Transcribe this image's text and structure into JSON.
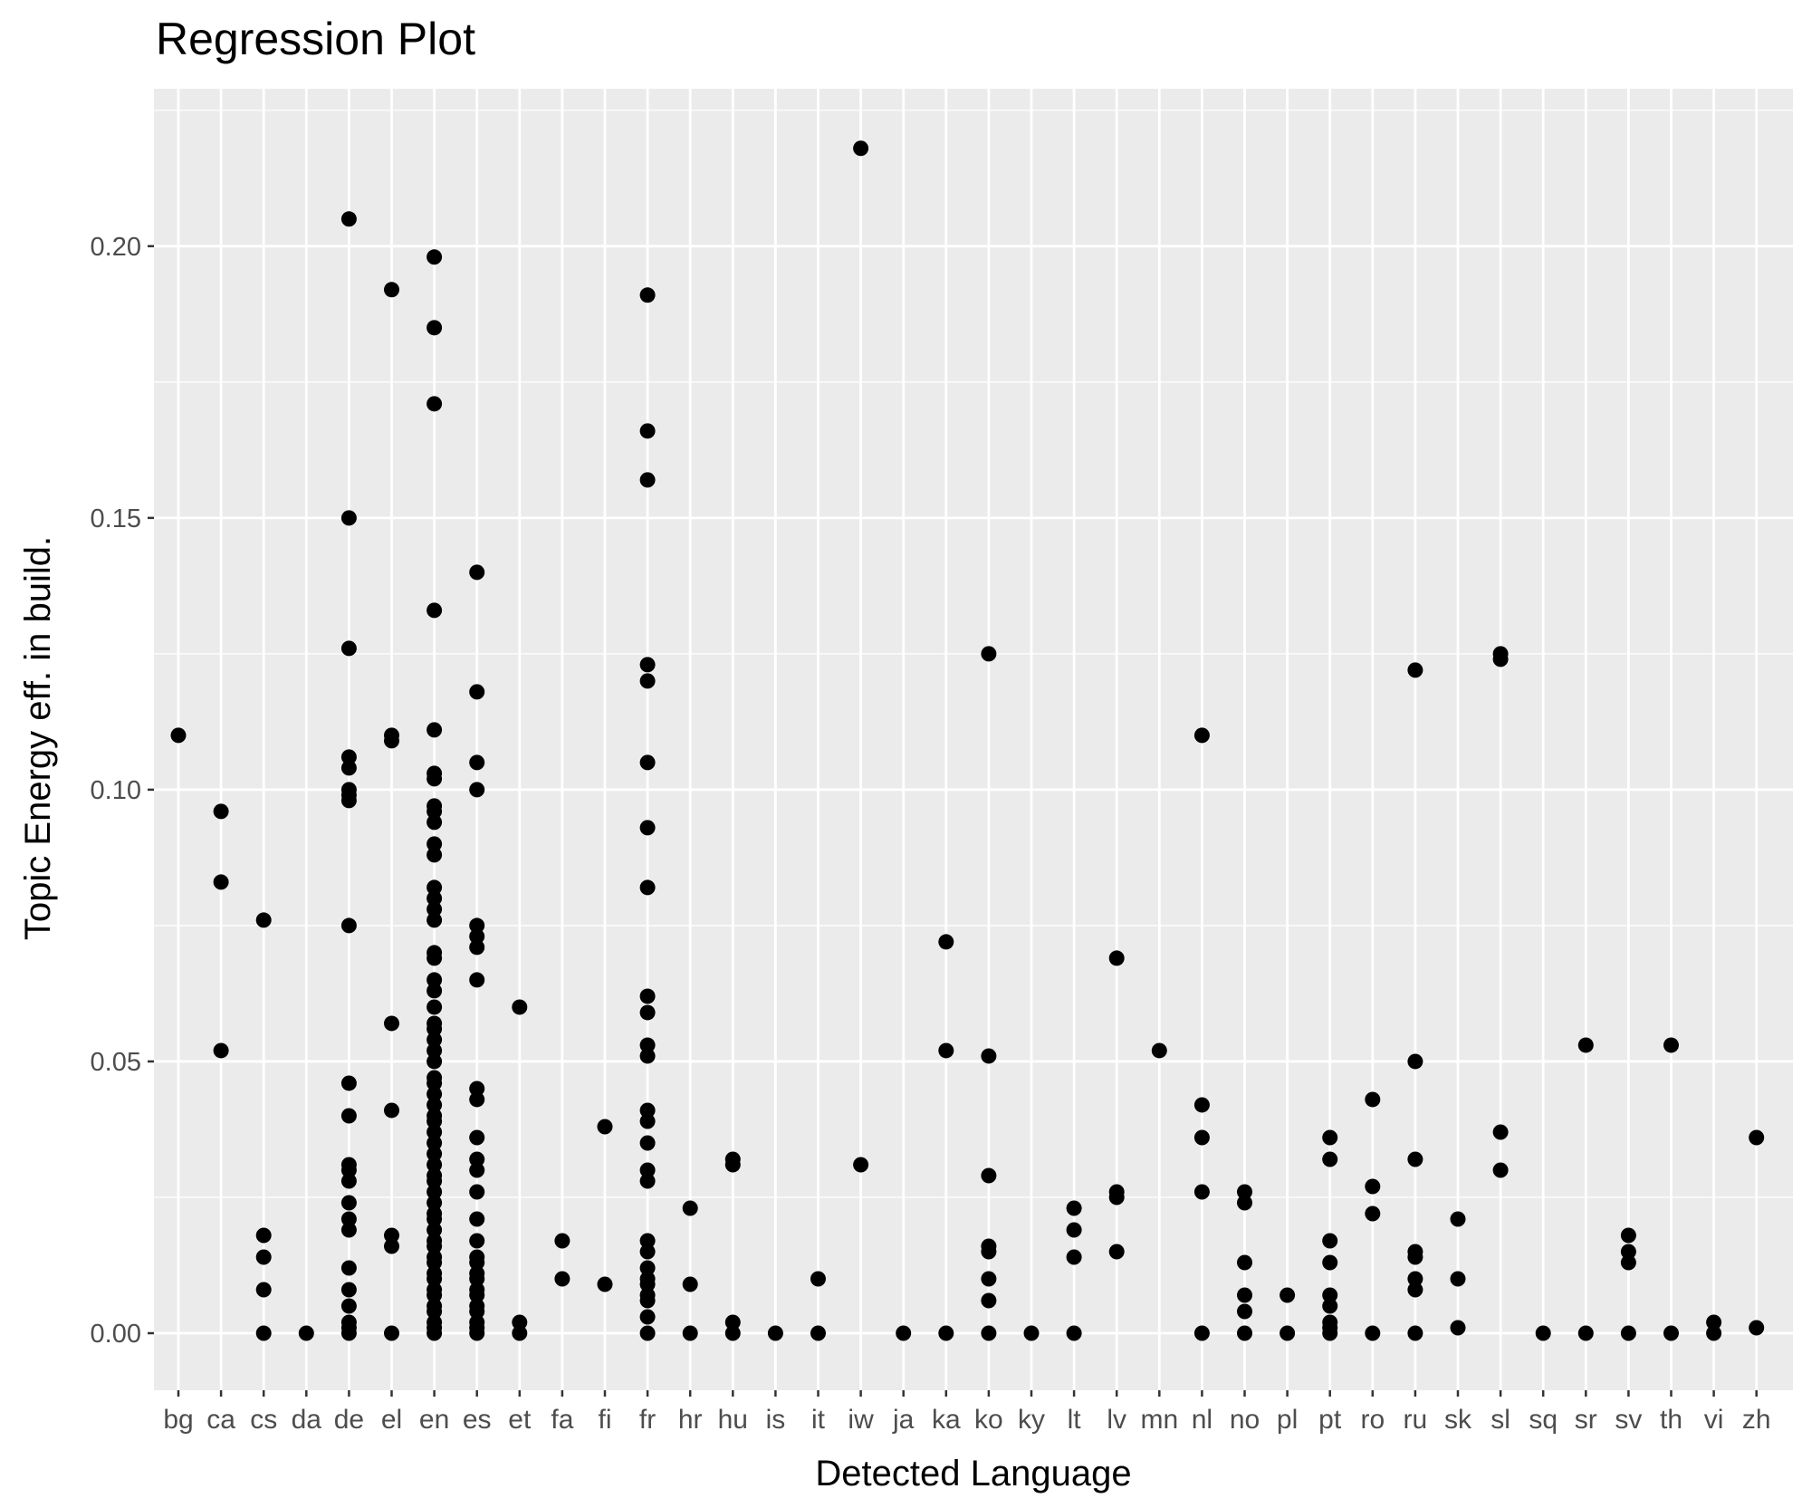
{
  "chart_data": {
    "type": "scatter",
    "title": "Regression Plot",
    "xlabel": "Detected Language",
    "ylabel": "Topic Energy eff. in build.",
    "categories": [
      "bg",
      "ca",
      "cs",
      "da",
      "de",
      "el",
      "en",
      "es",
      "et",
      "fa",
      "fi",
      "fr",
      "hr",
      "hu",
      "is",
      "it",
      "iw",
      "ja",
      "ka",
      "ko",
      "ky",
      "lt",
      "lv",
      "mn",
      "nl",
      "no",
      "pl",
      "pt",
      "ro",
      "ru",
      "sk",
      "sl",
      "sq",
      "sr",
      "sv",
      "th",
      "vi",
      "zh"
    ],
    "ylim": [
      -0.011,
      0.229
    ],
    "yticks": [
      "0.00",
      "0.05",
      "0.10",
      "0.15",
      "0.20"
    ],
    "grid": true,
    "point_color": "#000000",
    "panel_color": "#ebebeb",
    "series": [
      {
        "points": {
          "bg": [
            0.11
          ],
          "ca": [
            0.096,
            0.083,
            0.052
          ],
          "cs": [
            0.076,
            0.018,
            0.014,
            0.008,
            0.0
          ],
          "da": [
            0.0
          ],
          "de": [
            0.205,
            0.15,
            0.126,
            0.106,
            0.104,
            0.1,
            0.099,
            0.098,
            0.075,
            0.046,
            0.04,
            0.031,
            0.03,
            0.028,
            0.024,
            0.021,
            0.019,
            0.012,
            0.008,
            0.005,
            0.002,
            0.001,
            0.0
          ],
          "el": [
            0.192,
            0.11,
            0.109,
            0.057,
            0.041,
            0.018,
            0.016,
            0.0
          ],
          "en": [
            0.198,
            0.185,
            0.171,
            0.133,
            0.111,
            0.103,
            0.102,
            0.097,
            0.096,
            0.094,
            0.09,
            0.088,
            0.082,
            0.08,
            0.078,
            0.076,
            0.07,
            0.069,
            0.065,
            0.063,
            0.06,
            0.057,
            0.056,
            0.054,
            0.052,
            0.05,
            0.047,
            0.046,
            0.044,
            0.042,
            0.04,
            0.039,
            0.037,
            0.035,
            0.033,
            0.031,
            0.029,
            0.028,
            0.026,
            0.024,
            0.022,
            0.021,
            0.019,
            0.017,
            0.016,
            0.014,
            0.013,
            0.011,
            0.01,
            0.008,
            0.007,
            0.005,
            0.004,
            0.002,
            0.001,
            0.0
          ],
          "es": [
            0.14,
            0.118,
            0.105,
            0.1,
            0.075,
            0.073,
            0.071,
            0.065,
            0.045,
            0.043,
            0.036,
            0.032,
            0.03,
            0.026,
            0.021,
            0.017,
            0.014,
            0.013,
            0.011,
            0.01,
            0.008,
            0.007,
            0.005,
            0.004,
            0.002,
            0.001,
            0.0
          ],
          "et": [
            0.06,
            0.002,
            0.0
          ],
          "fa": [
            0.017,
            0.01
          ],
          "fi": [
            0.038,
            0.009
          ],
          "fr": [
            0.191,
            0.166,
            0.157,
            0.123,
            0.12,
            0.105,
            0.093,
            0.082,
            0.062,
            0.059,
            0.053,
            0.051,
            0.041,
            0.039,
            0.035,
            0.03,
            0.028,
            0.017,
            0.015,
            0.012,
            0.01,
            0.009,
            0.007,
            0.006,
            0.003,
            0.0
          ],
          "hr": [
            0.023,
            0.009,
            0.0
          ],
          "hu": [
            0.032,
            0.031,
            0.002,
            0.0
          ],
          "is": [
            0.0
          ],
          "it": [
            0.01,
            0.0
          ],
          "iw": [
            0.218,
            0.031
          ],
          "ja": [
            0.0
          ],
          "ka": [
            0.072,
            0.052,
            0.0
          ],
          "ko": [
            0.125,
            0.051,
            0.029,
            0.016,
            0.015,
            0.01,
            0.006,
            0.0
          ],
          "ky": [
            0.0
          ],
          "lt": [
            0.023,
            0.019,
            0.014,
            0.0
          ],
          "lv": [
            0.069,
            0.026,
            0.025,
            0.015
          ],
          "mn": [
            0.052
          ],
          "nl": [
            0.11,
            0.042,
            0.036,
            0.026,
            0.0
          ],
          "no": [
            0.026,
            0.024,
            0.013,
            0.007,
            0.004,
            0.0
          ],
          "pl": [
            0.007,
            0.0
          ],
          "pt": [
            0.036,
            0.032,
            0.017,
            0.013,
            0.007,
            0.005,
            0.002,
            0.001,
            0.0
          ],
          "ro": [
            0.043,
            0.027,
            0.022,
            0.0
          ],
          "ru": [
            0.122,
            0.05,
            0.032,
            0.015,
            0.014,
            0.01,
            0.008,
            0.0
          ],
          "sk": [
            0.021,
            0.01,
            0.001
          ],
          "sl": [
            0.125,
            0.124,
            0.037,
            0.03
          ],
          "sq": [
            0.0
          ],
          "sr": [
            0.053,
            0.0
          ],
          "sv": [
            0.018,
            0.015,
            0.013,
            0.0
          ],
          "th": [
            0.053,
            0.0
          ],
          "vi": [
            0.002,
            0.0
          ],
          "zh": [
            0.036,
            0.001
          ]
        }
      }
    ]
  }
}
